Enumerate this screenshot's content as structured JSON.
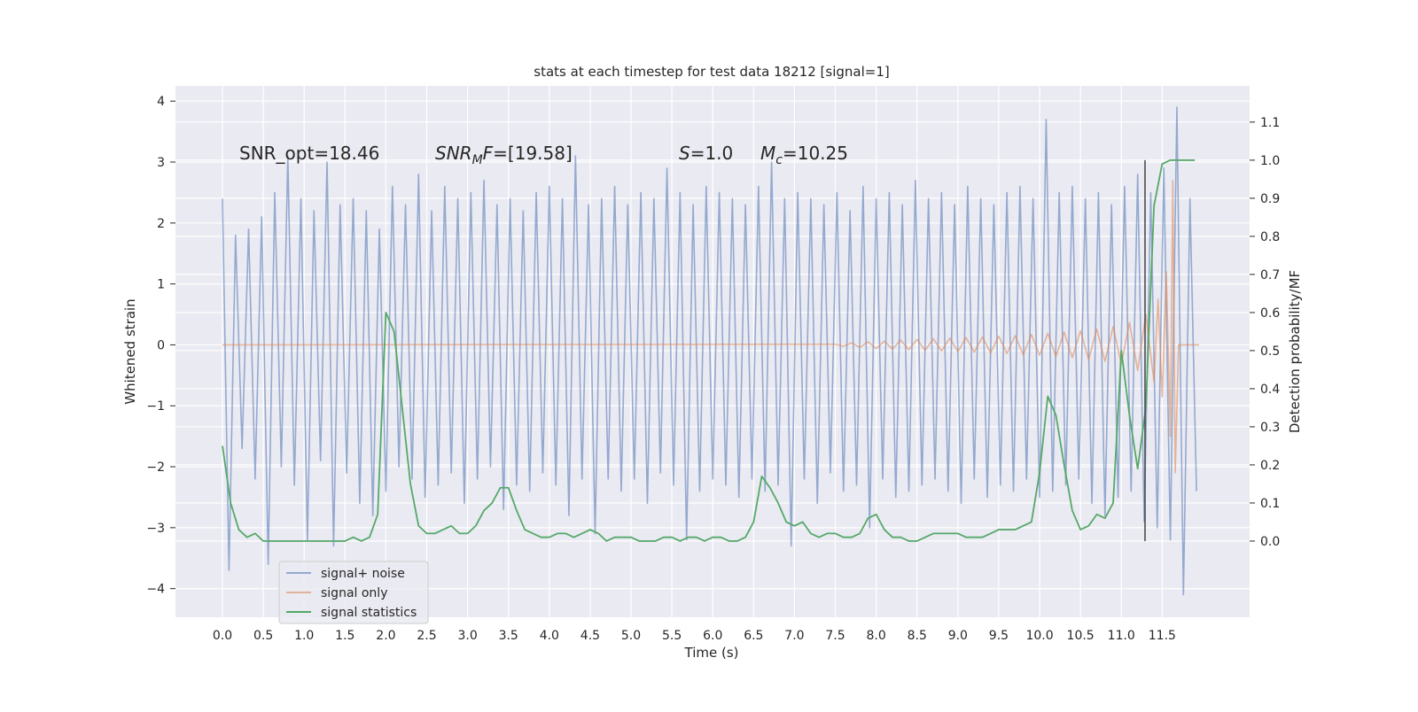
{
  "chart_data": {
    "type": "line",
    "title": "stats at each timestep for test data 18212 [signal=1]",
    "xlabel": "Time (s)",
    "ylabel": "Whitened strain",
    "y2label": "Detection probability/MF",
    "xlim": [
      -0.575,
      12.57
    ],
    "ylim": [
      -4.47,
      4.25
    ],
    "y2lim": [
      -0.2,
      1.195
    ],
    "xticks": [
      {
        "value": 0,
        "label": "0.0"
      },
      0.5,
      {
        "value": 1,
        "label": "1.0"
      },
      1.5,
      {
        "value": 2,
        "label": "2.0"
      },
      2.5,
      {
        "value": 3,
        "label": "3.0"
      },
      3.5,
      {
        "value": 4,
        "label": "4.0"
      },
      4.5,
      {
        "value": 5,
        "label": "5.0"
      },
      5.5,
      {
        "value": 6,
        "label": "6.0"
      },
      6.5,
      {
        "value": 7,
        "label": "7.0"
      },
      7.5,
      {
        "value": 8,
        "label": "8.0"
      },
      8.5,
      {
        "value": 9,
        "label": "9.0"
      },
      9.5,
      {
        "value": 10,
        "label": "10.0"
      },
      10.5,
      {
        "value": 11,
        "label": "11.0"
      },
      11.5
    ],
    "yticks": [
      {
        "value": -4,
        "label": "−4"
      },
      {
        "value": -3,
        "label": "−3"
      },
      {
        "value": -2,
        "label": "−2"
      },
      {
        "value": -1,
        "label": "−1"
      },
      0,
      1,
      2,
      3,
      4
    ],
    "y2ticks": [
      {
        "value": 0,
        "label": "0.0"
      },
      0.1,
      0.2,
      0.3,
      0.4,
      0.5,
      0.6,
      0.7,
      0.8,
      0.9,
      {
        "value": 1,
        "label": "1.0"
      },
      1.1
    ],
    "grid": true,
    "legend": "lower left",
    "series": [
      {
        "name": "signal+ noise",
        "color": "#4c72b0",
        "x": [
          0,
          0.08,
          0.16,
          0.24,
          0.32,
          0.4,
          0.48,
          0.56,
          0.64,
          0.72,
          0.8,
          0.88,
          0.96,
          1.04,
          1.12,
          1.2,
          1.28,
          1.36,
          1.44,
          1.52,
          1.6,
          1.68,
          1.76,
          1.84,
          1.92,
          2,
          2.08,
          2.16,
          2.24,
          2.32,
          2.4,
          2.48,
          2.56,
          2.64,
          2.72,
          2.8,
          2.88,
          2.96,
          3.04,
          3.12,
          3.2,
          3.28,
          3.36,
          3.44,
          3.52,
          3.6,
          3.68,
          3.76,
          3.84,
          3.92,
          4,
          4.08,
          4.16,
          4.24,
          4.32,
          4.4,
          4.48,
          4.56,
          4.64,
          4.72,
          4.8,
          4.88,
          4.96,
          5.04,
          5.12,
          5.2,
          5.28,
          5.36,
          5.44,
          5.52,
          5.6,
          5.68,
          5.76,
          5.84,
          5.92,
          6,
          6.08,
          6.16,
          6.24,
          6.32,
          6.4,
          6.48,
          6.56,
          6.64,
          6.72,
          6.8,
          6.88,
          6.96,
          7.04,
          7.12,
          7.2,
          7.28,
          7.36,
          7.44,
          7.52,
          7.6,
          7.68,
          7.76,
          7.84,
          7.92,
          8,
          8.08,
          8.16,
          8.24,
          8.32,
          8.4,
          8.48,
          8.56,
          8.64,
          8.72,
          8.8,
          8.88,
          8.96,
          9.04,
          9.12,
          9.2,
          9.28,
          9.36,
          9.44,
          9.52,
          9.6,
          9.68,
          9.76,
          9.84,
          9.92,
          10,
          10.08,
          10.16,
          10.24,
          10.32,
          10.4,
          10.48,
          10.56,
          10.64,
          10.72,
          10.8,
          10.88,
          10.96,
          11.04,
          11.12,
          11.2,
          11.28,
          11.36,
          11.44,
          11.52,
          11.6,
          11.68,
          11.76,
          11.84,
          11.92
        ],
        "values": [
          2.4,
          -3.7,
          1.8,
          -1.7,
          1.9,
          -2.2,
          2.1,
          -3.6,
          2.5,
          -2.0,
          3.1,
          -2.3,
          2.4,
          -3.2,
          2.2,
          -1.9,
          3.0,
          -3.3,
          2.3,
          -2.1,
          2.4,
          -2.6,
          2.2,
          -2.8,
          1.9,
          -2.4,
          2.6,
          -2.0,
          2.3,
          -2.2,
          2.8,
          -2.5,
          2.2,
          -2.3,
          2.6,
          -2.1,
          2.4,
          -2.6,
          2.5,
          -2.2,
          2.7,
          -2.0,
          2.3,
          -2.7,
          2.4,
          -2.3,
          2.2,
          -2.4,
          2.5,
          -2.1,
          2.6,
          -2.3,
          2.4,
          -2.8,
          3.1,
          -2.2,
          2.3,
          -3.1,
          2.4,
          -2.2,
          2.6,
          -2.4,
          2.3,
          -2.2,
          2.5,
          -2.6,
          2.4,
          -2.1,
          2.9,
          -2.3,
          2.5,
          -3.2,
          2.3,
          -2.4,
          2.6,
          -2.2,
          2.5,
          -2.3,
          2.4,
          -2.5,
          2.3,
          -2.2,
          2.6,
          -2.4,
          3.0,
          -2.3,
          2.4,
          -3.3,
          2.5,
          -2.2,
          2.4,
          -2.6,
          2.3,
          -2.1,
          2.5,
          -2.4,
          2.2,
          -2.3,
          2.6,
          -3.0,
          2.4,
          -2.2,
          2.5,
          -2.5,
          2.3,
          -2.4,
          2.7,
          -2.3,
          2.4,
          -2.2,
          2.5,
          -2.4,
          2.3,
          -2.6,
          2.6,
          -2.2,
          2.4,
          -2.5,
          2.3,
          -2.3,
          2.5,
          -2.4,
          2.6,
          -2.2,
          2.4,
          -2.5,
          3.7,
          -2.4,
          2.5,
          -2.3,
          2.6,
          -2.2,
          2.4,
          -2.6,
          2.5,
          -2.8,
          2.3,
          -2.5,
          2.6,
          -2.4,
          2.8,
          -2.9,
          2.5,
          -3.0,
          2.9,
          -3.2,
          3.9,
          -4.1,
          2.4,
          -2.4
        ]
      },
      {
        "name": "signal only",
        "color": "#dd8452",
        "x": [
          0,
          7.5,
          7.6,
          7.7,
          7.8,
          7.9,
          8,
          8.1,
          8.2,
          8.3,
          8.4,
          8.5,
          8.6,
          8.7,
          8.8,
          8.9,
          9,
          9.1,
          9.2,
          9.3,
          9.4,
          9.5,
          9.6,
          9.7,
          9.8,
          9.9,
          10,
          10.1,
          10.2,
          10.3,
          10.4,
          10.5,
          10.6,
          10.7,
          10.8,
          10.9,
          11,
          11.1,
          11.2,
          11.3,
          11.4,
          11.45,
          11.5,
          11.55,
          11.6,
          11.63,
          11.66,
          11.7,
          11.95
        ],
        "values": [
          0,
          0.01,
          -0.02,
          0.03,
          -0.04,
          0.05,
          -0.06,
          0.06,
          -0.07,
          0.08,
          -0.08,
          0.09,
          -0.09,
          0.1,
          -0.1,
          0.11,
          -0.11,
          0.12,
          -0.12,
          0.13,
          -0.13,
          0.14,
          -0.14,
          0.15,
          -0.16,
          0.17,
          -0.17,
          0.19,
          -0.19,
          0.21,
          -0.21,
          0.23,
          -0.24,
          0.26,
          -0.27,
          0.3,
          -0.32,
          0.37,
          -0.42,
          0.5,
          -0.6,
          0.75,
          -0.85,
          1.2,
          -1.5,
          2.7,
          -2.1,
          0,
          0
        ]
      },
      {
        "name": "signal statistics",
        "color": "#55a868",
        "axis": "y2",
        "x": [
          0,
          0.1,
          0.2,
          0.3,
          0.4,
          0.5,
          0.6,
          0.7,
          0.8,
          0.9,
          1,
          1.1,
          1.2,
          1.3,
          1.4,
          1.5,
          1.6,
          1.7,
          1.8,
          1.9,
          2,
          2.1,
          2.2,
          2.3,
          2.4,
          2.5,
          2.6,
          2.7,
          2.8,
          2.9,
          3,
          3.1,
          3.2,
          3.3,
          3.4,
          3.5,
          3.6,
          3.7,
          3.8,
          3.9,
          4,
          4.1,
          4.2,
          4.3,
          4.4,
          4.5,
          4.6,
          4.7,
          4.8,
          4.9,
          5,
          5.1,
          5.2,
          5.3,
          5.4,
          5.5,
          5.6,
          5.7,
          5.8,
          5.9,
          6,
          6.1,
          6.2,
          6.3,
          6.4,
          6.5,
          6.6,
          6.7,
          6.8,
          6.9,
          7,
          7.1,
          7.2,
          7.3,
          7.4,
          7.5,
          7.6,
          7.7,
          7.8,
          7.9,
          8,
          8.1,
          8.2,
          8.3,
          8.4,
          8.5,
          8.6,
          8.7,
          8.8,
          8.9,
          9,
          9.1,
          9.2,
          9.3,
          9.4,
          9.5,
          9.6,
          9.7,
          9.8,
          9.9,
          10,
          10.1,
          10.2,
          10.3,
          10.4,
          10.5,
          10.6,
          10.7,
          10.8,
          10.9,
          11,
          11.1,
          11.2,
          11.3,
          11.4,
          11.5,
          11.6,
          11.7,
          11.8,
          11.9
        ],
        "values": [
          0.25,
          0.1,
          0.03,
          0.01,
          0.02,
          0,
          0,
          0,
          0,
          0,
          0,
          0,
          0,
          0,
          0,
          0,
          0.01,
          0,
          0.01,
          0.07,
          0.6,
          0.55,
          0.35,
          0.15,
          0.04,
          0.02,
          0.02,
          0.03,
          0.04,
          0.02,
          0.02,
          0.04,
          0.08,
          0.1,
          0.14,
          0.14,
          0.08,
          0.03,
          0.02,
          0.01,
          0.01,
          0.02,
          0.02,
          0.01,
          0.02,
          0.03,
          0.02,
          0,
          0.01,
          0.01,
          0.01,
          0,
          0,
          0,
          0.01,
          0.01,
          0,
          0.01,
          0.01,
          0,
          0.01,
          0.01,
          0,
          0,
          0.01,
          0.05,
          0.17,
          0.14,
          0.1,
          0.05,
          0.04,
          0.05,
          0.02,
          0.01,
          0.02,
          0.02,
          0.01,
          0.01,
          0.02,
          0.06,
          0.07,
          0.03,
          0.01,
          0.01,
          0,
          0,
          0.01,
          0.02,
          0.02,
          0.02,
          0.02,
          0.01,
          0.01,
          0.01,
          0.02,
          0.03,
          0.03,
          0.03,
          0.04,
          0.05,
          0.18,
          0.38,
          0.33,
          0.2,
          0.08,
          0.03,
          0.04,
          0.07,
          0.06,
          0.1,
          0.5,
          0.33,
          0.19,
          0.35,
          0.88,
          0.99,
          1,
          1,
          1,
          1
        ]
      }
    ],
    "vline": {
      "x": 11.29,
      "ymin": 0,
      "ymax": 1,
      "axis": "y2",
      "color": "#444444"
    },
    "annotations": [
      {
        "parts": [
          {
            "text": "SNR_opt=18.46"
          }
        ]
      },
      {
        "parts": [
          {
            "text": "SNR",
            "italic": true
          },
          {
            "text": "M",
            "italic": true,
            "sub": true
          },
          {
            "text": "F",
            "italic": true
          },
          {
            "text": "=[19.58]"
          }
        ]
      },
      {
        "parts": [
          {
            "text": "S",
            "italic": true
          },
          {
            "text": "=1.0"
          }
        ]
      },
      {
        "parts": [
          {
            "text": "M",
            "italic": true
          },
          {
            "text": "c",
            "italic": true,
            "sub": true
          },
          {
            "text": "=10.25"
          }
        ]
      }
    ]
  }
}
